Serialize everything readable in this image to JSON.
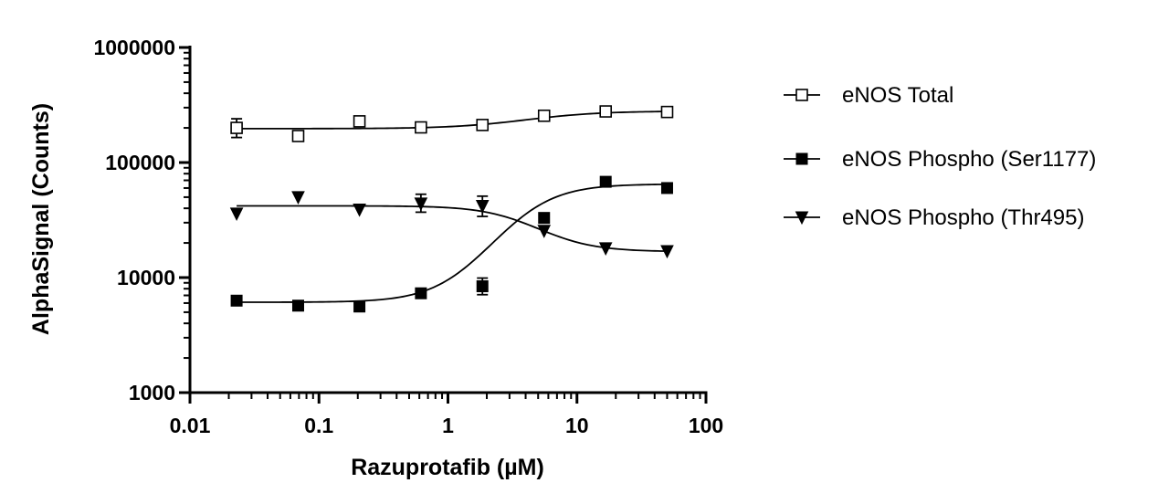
{
  "chart_data": {
    "type": "scatter",
    "xlabel": "Razuprotafib (µM)",
    "ylabel": "AlphaSignal (Counts)",
    "xscale": "log",
    "yscale": "log",
    "xlim": [
      0.01,
      100
    ],
    "ylim": [
      1000,
      1000000
    ],
    "x_ticks": [
      0.01,
      0.1,
      1,
      10,
      100
    ],
    "x_tick_labels": [
      "0.01",
      "0.1",
      "1",
      "10",
      "100"
    ],
    "y_ticks": [
      1000,
      10000,
      100000,
      1000000
    ],
    "y_tick_labels": [
      "1000",
      "10000",
      "100000",
      "1000000"
    ],
    "legend_position": "right",
    "series": [
      {
        "name": "eNOS Total",
        "marker": "open-square",
        "color": "#000000",
        "points": [
          {
            "x": 0.023,
            "y": 200000,
            "err": [
              165000,
              240000
            ]
          },
          {
            "x": 0.069,
            "y": 170000
          },
          {
            "x": 0.206,
            "y": 228000,
            "err": [
              205000,
              252000
            ]
          },
          {
            "x": 0.617,
            "y": 202000
          },
          {
            "x": 1.85,
            "y": 212000
          },
          {
            "x": 5.56,
            "y": 255000
          },
          {
            "x": 16.7,
            "y": 278000
          },
          {
            "x": 50,
            "y": 275000
          }
        ],
        "fit": {
          "bottom": 197000,
          "top": 280000,
          "ec50": 4.5,
          "hill": 1.5
        }
      },
      {
        "name": "eNOS Phospho (Ser1177)",
        "marker": "filled-square",
        "color": "#000000",
        "points": [
          {
            "x": 0.023,
            "y": 6300
          },
          {
            "x": 0.069,
            "y": 5700
          },
          {
            "x": 0.206,
            "y": 5600
          },
          {
            "x": 0.617,
            "y": 7300
          },
          {
            "x": 1.85,
            "y": 8400,
            "err": [
              7100,
              9900
            ]
          },
          {
            "x": 5.56,
            "y": 33000
          },
          {
            "x": 16.7,
            "y": 68000
          },
          {
            "x": 50,
            "y": 60000
          }
        ],
        "fit": {
          "bottom": 6100,
          "top": 65000,
          "ec50": 4.0,
          "hill": 2.0
        }
      },
      {
        "name": "eNOS Phospho (Thr495)",
        "marker": "filled-triangle-down",
        "color": "#000000",
        "points": [
          {
            "x": 0.023,
            "y": 36000
          },
          {
            "x": 0.069,
            "y": 50000
          },
          {
            "x": 0.206,
            "y": 39000
          },
          {
            "x": 0.617,
            "y": 44000,
            "err": [
              37000,
              53000
            ]
          },
          {
            "x": 1.85,
            "y": 42000,
            "err": [
              34000,
              51000
            ]
          },
          {
            "x": 5.56,
            "y": 25500
          },
          {
            "x": 16.7,
            "y": 18000
          },
          {
            "x": 50,
            "y": 17000
          }
        ],
        "fit": {
          "bottom": 42000,
          "top": 16800,
          "ec50": 4.0,
          "hill": 2.0
        }
      }
    ]
  }
}
